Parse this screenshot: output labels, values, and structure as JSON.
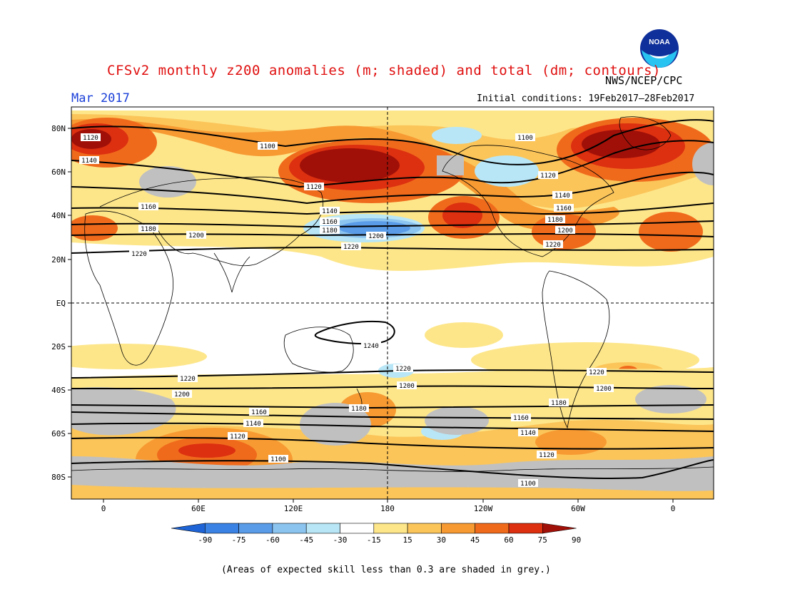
{
  "header": {
    "title": "CFSv2 monthly z200 anomalies (m; shaded) and total (dm; contours)",
    "org": "NWS/NCEP/CPC",
    "month": "Mar 2017",
    "initial_conditions": "Initial conditions: 19Feb2017–28Feb2017",
    "logo_text": "NOAA"
  },
  "axes": {
    "lat_labels": [
      "80N",
      "60N",
      "40N",
      "20N",
      "EQ",
      "20S",
      "40S",
      "60S",
      "80S"
    ],
    "lon_labels": [
      "0",
      "60E",
      "120E",
      "180",
      "120W",
      "60W",
      "0"
    ]
  },
  "colorbar": {
    "labels": [
      "-90",
      "-75",
      "-60",
      "-45",
      "-30",
      "-15",
      "15",
      "30",
      "45",
      "60",
      "75",
      "90"
    ],
    "colors": [
      "#1e64d6",
      "#3a82e4",
      "#5a9ce8",
      "#8cc4f0",
      "#b8e6f6",
      "#ffffff",
      "#fde68a",
      "#fbc55a",
      "#f79a32",
      "#f06a1c",
      "#dc3010",
      "#a01008"
    ]
  },
  "footnote": "(Areas of expected skill less than 0.3 are shaded in grey.)",
  "contour_labels": [
    {
      "text": "1120"
    },
    {
      "text": "1140"
    },
    {
      "text": "1100"
    },
    {
      "text": "1120"
    },
    {
      "text": "1160"
    },
    {
      "text": "1180"
    },
    {
      "text": "1200"
    },
    {
      "text": "1220"
    },
    {
      "text": "1140"
    },
    {
      "text": "1160"
    },
    {
      "text": "1180"
    },
    {
      "text": "1200"
    },
    {
      "text": "1220"
    },
    {
      "text": "1100"
    },
    {
      "text": "1120"
    },
    {
      "text": "1140"
    },
    {
      "text": "1160"
    },
    {
      "text": "1180"
    },
    {
      "text": "1200"
    },
    {
      "text": "1220"
    },
    {
      "text": "1240"
    },
    {
      "text": "1220"
    },
    {
      "text": "1200"
    },
    {
      "text": "1220"
    },
    {
      "text": "1200"
    },
    {
      "text": "1180"
    },
    {
      "text": "1160"
    },
    {
      "text": "1140"
    },
    {
      "text": "1120"
    },
    {
      "text": "1100"
    },
    {
      "text": "1220"
    },
    {
      "text": "1200"
    },
    {
      "text": "1180"
    },
    {
      "text": "1160"
    },
    {
      "text": "1140"
    },
    {
      "text": "1120"
    },
    {
      "text": "1100"
    }
  ]
}
